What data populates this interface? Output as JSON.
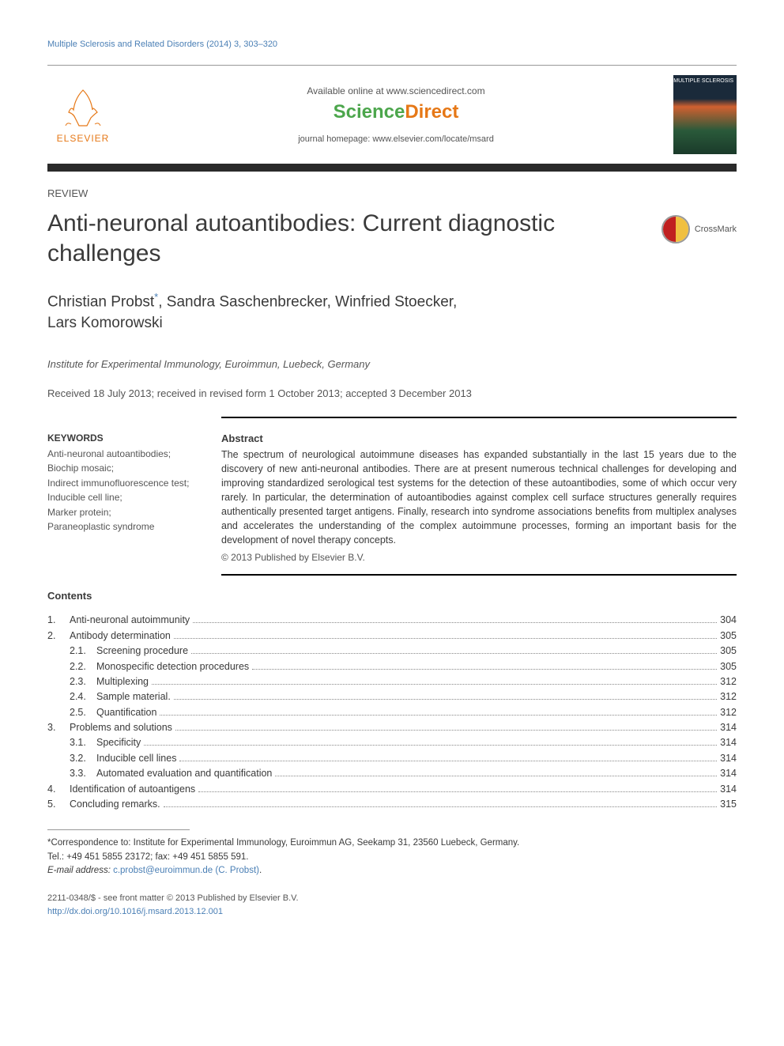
{
  "header": {
    "citation": "Multiple Sclerosis and Related Disorders (2014) 3, 303–320",
    "available": "Available online at www.sciencedirect.com",
    "sciencedirect1": "Science",
    "sciencedirect2": "Direct",
    "homepage": "journal homepage: www.elsevier.com/locate/msard",
    "elsevier": "ELSEVIER",
    "cover_title": "MULTIPLE SCLEROSIS"
  },
  "article": {
    "type": "REVIEW",
    "title": "Anti-neuronal autoantibodies: Current diagnostic challenges",
    "crossmark": "CrossMark",
    "authors_line1": "Christian Probst",
    "authors_line1b": ", Sandra Saschenbrecker, Winfried Stoecker,",
    "authors_line2": "Lars Komorowski",
    "affiliation": "Institute for Experimental Immunology, Euroimmun, Luebeck, Germany",
    "dates": "Received 18 July 2013; received in revised form 1 October 2013; accepted 3 December 2013"
  },
  "keywords": {
    "heading": "KEYWORDS",
    "text": "Anti-neuronal autoantibodies;\nBiochip mosaic;\nIndirect immunofluorescence test;\nInducible cell line;\nMarker protein;\nParaneoplastic syndrome"
  },
  "abstract": {
    "heading": "Abstract",
    "text": "The spectrum of neurological autoimmune diseases has expanded substantially in the last 15 years due to the discovery of new anti-neuronal antibodies. There are at present numerous technical challenges for developing and improving standardized serological test systems for the detection of these autoantibodies, some of which occur very rarely. In particular, the determination of autoantibodies against complex cell surface structures generally requires authentically presented target antigens. Finally, research into syndrome associations benefits from multiplex analyses and accelerates the understanding of the complex autoimmune processes, forming an important basis for the development of novel therapy concepts.",
    "copyright": "© 2013 Published by Elsevier B.V."
  },
  "contents": {
    "heading": "Contents",
    "items": [
      {
        "num": "1.",
        "label": "Anti-neuronal autoimmunity",
        "page": "304",
        "level": 1
      },
      {
        "num": "2.",
        "label": "Antibody determination",
        "page": "305",
        "level": 1
      },
      {
        "num": "2.1.",
        "label": "Screening procedure",
        "page": "305",
        "level": 2
      },
      {
        "num": "2.2.",
        "label": "Monospecific detection procedures",
        "page": "305",
        "level": 2
      },
      {
        "num": "2.3.",
        "label": "Multiplexing",
        "page": "312",
        "level": 2
      },
      {
        "num": "2.4.",
        "label": "Sample material.",
        "page": "312",
        "level": 2
      },
      {
        "num": "2.5.",
        "label": "Quantification",
        "page": "312",
        "level": 2
      },
      {
        "num": "3.",
        "label": "Problems and solutions",
        "page": "314",
        "level": 1
      },
      {
        "num": "3.1.",
        "label": "Specificity",
        "page": "314",
        "level": 2
      },
      {
        "num": "3.2.",
        "label": "Inducible cell lines",
        "page": "314",
        "level": 2
      },
      {
        "num": "3.3.",
        "label": "Automated evaluation and quantification",
        "page": "314",
        "level": 2
      },
      {
        "num": "4.",
        "label": "Identification of autoantigens",
        "page": "314",
        "level": 1
      },
      {
        "num": "5.",
        "label": "Concluding remarks.",
        "page": "315",
        "level": 1
      }
    ]
  },
  "footnote": {
    "corr": "*Correspondence to: Institute for Experimental Immunology, Euroimmun AG, Seekamp 31, 23560 Luebeck, Germany.",
    "tel": "Tel.: +49 451 5855 23172; fax: +49 451 5855 591.",
    "email_label": "E-mail address: ",
    "email": "c.probst@euroimmun.de (C. Probst)",
    "email_suffix": "."
  },
  "issn": {
    "line1": "2211-0348/$ - see front matter © 2013 Published by Elsevier B.V.",
    "doi": "http://dx.doi.org/10.1016/j.msard.2013.12.001"
  },
  "colors": {
    "link": "#4a7fb5",
    "orange": "#e67817",
    "green": "#4ca64c"
  }
}
